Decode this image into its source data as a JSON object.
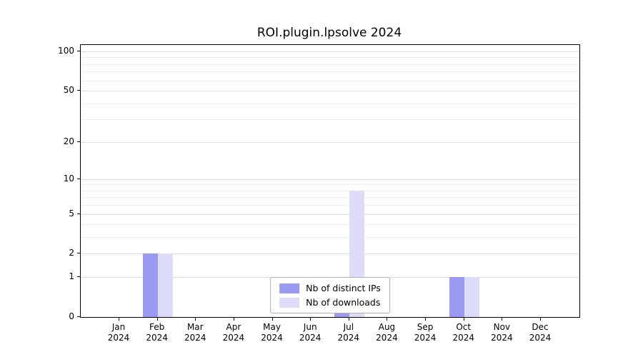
{
  "chart_data": {
    "type": "bar",
    "title": "ROI.plugin.lpsolve 2024",
    "categories": [
      "Jan 2024",
      "Feb 2024",
      "Mar 2024",
      "Apr 2024",
      "May 2024",
      "Jun 2024",
      "Jul 2024",
      "Aug 2024",
      "Sep 2024",
      "Oct 2024",
      "Nov 2024",
      "Dec 2024"
    ],
    "series": [
      {
        "name": "Nb of distinct IPs",
        "color": "#9a9af0",
        "values": [
          0,
          2,
          0,
          0,
          0,
          0,
          1,
          0,
          0,
          1,
          0,
          0
        ]
      },
      {
        "name": "Nb of downloads",
        "color": "#dcdcf9",
        "values": [
          0,
          2,
          0,
          0,
          0,
          0,
          8,
          0,
          0,
          1,
          0,
          0
        ]
      }
    ],
    "xlabel": "",
    "ylabel": "",
    "y_scale": "log1p",
    "ylim": [
      0,
      100
    ],
    "y_ticks": [
      0,
      1,
      2,
      5,
      10,
      20,
      50,
      100
    ],
    "y_minor_gridlines": [
      1,
      2,
      3,
      4,
      5,
      6,
      7,
      8,
      9,
      10,
      20,
      30,
      40,
      50,
      60,
      70,
      80,
      90,
      100
    ],
    "grid": true,
    "legend_position": "lower center",
    "colors": {
      "grid_major": "#dddddd",
      "grid_minor": "#ececec",
      "axis": "#000000"
    }
  }
}
